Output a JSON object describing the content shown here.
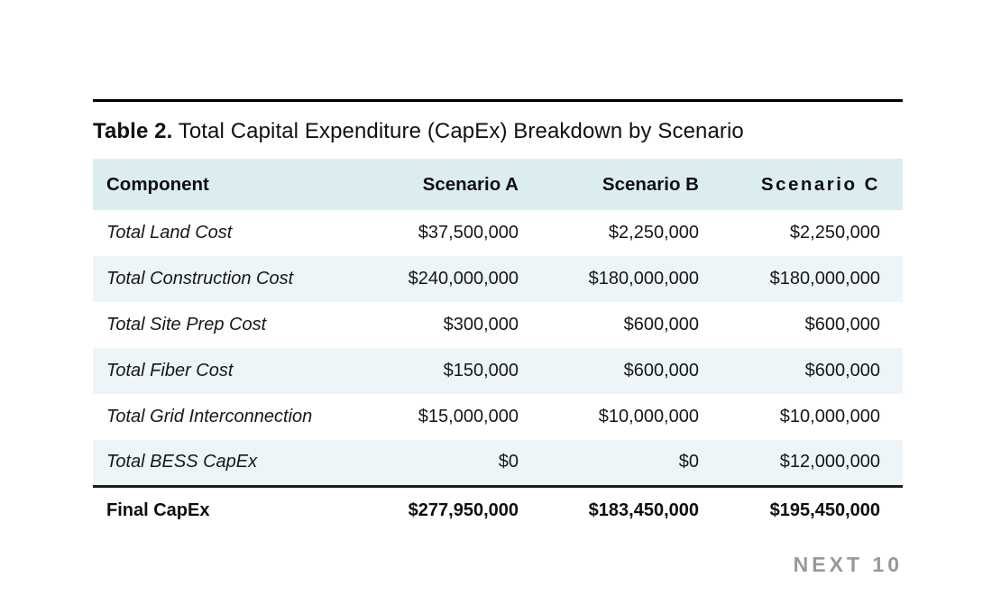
{
  "page": {
    "title_prefix": "Table 2.",
    "title_rest": " Total Capital Expenditure (CapEx) Breakdown by Scenario",
    "footer_label": "NEXT 10"
  },
  "colors": {
    "header_bg": "#dcedf2",
    "row_alt_bg": "#edf5f8",
    "rule_black": "#000000",
    "final_border": "#1c1c1e",
    "footer_gray": "#97999c",
    "text": "#17171a"
  },
  "table": {
    "columns": [
      "Component",
      "Scenario A",
      "Scenario B",
      "Scenario C"
    ],
    "rows": [
      {
        "component": "Total Land Cost",
        "scenario_a": "$37,500,000",
        "scenario_b": "$2,250,000",
        "scenario_c": "$2,250,000"
      },
      {
        "component": "Total Construction Cost",
        "scenario_a": "$240,000,000",
        "scenario_b": "$180,000,000",
        "scenario_c": "$180,000,000"
      },
      {
        "component": "Total Site Prep Cost",
        "scenario_a": "$300,000",
        "scenario_b": "$600,000",
        "scenario_c": "$600,000"
      },
      {
        "component": "Total Fiber Cost",
        "scenario_a": "$150,000",
        "scenario_b": "$600,000",
        "scenario_c": "$600,000"
      },
      {
        "component": "Total Grid Interconnection",
        "scenario_a": "$15,000,000",
        "scenario_b": "$10,000,000",
        "scenario_c": "$10,000,000"
      },
      {
        "component": "Total BESS CapEx",
        "scenario_a": "$0",
        "scenario_b": "$0",
        "scenario_c": "$12,000,000"
      }
    ],
    "final": {
      "component": "Final CapEx",
      "scenario_a": "$277,950,000",
      "scenario_b": "$183,450,000",
      "scenario_c": "$195,450,000"
    }
  }
}
